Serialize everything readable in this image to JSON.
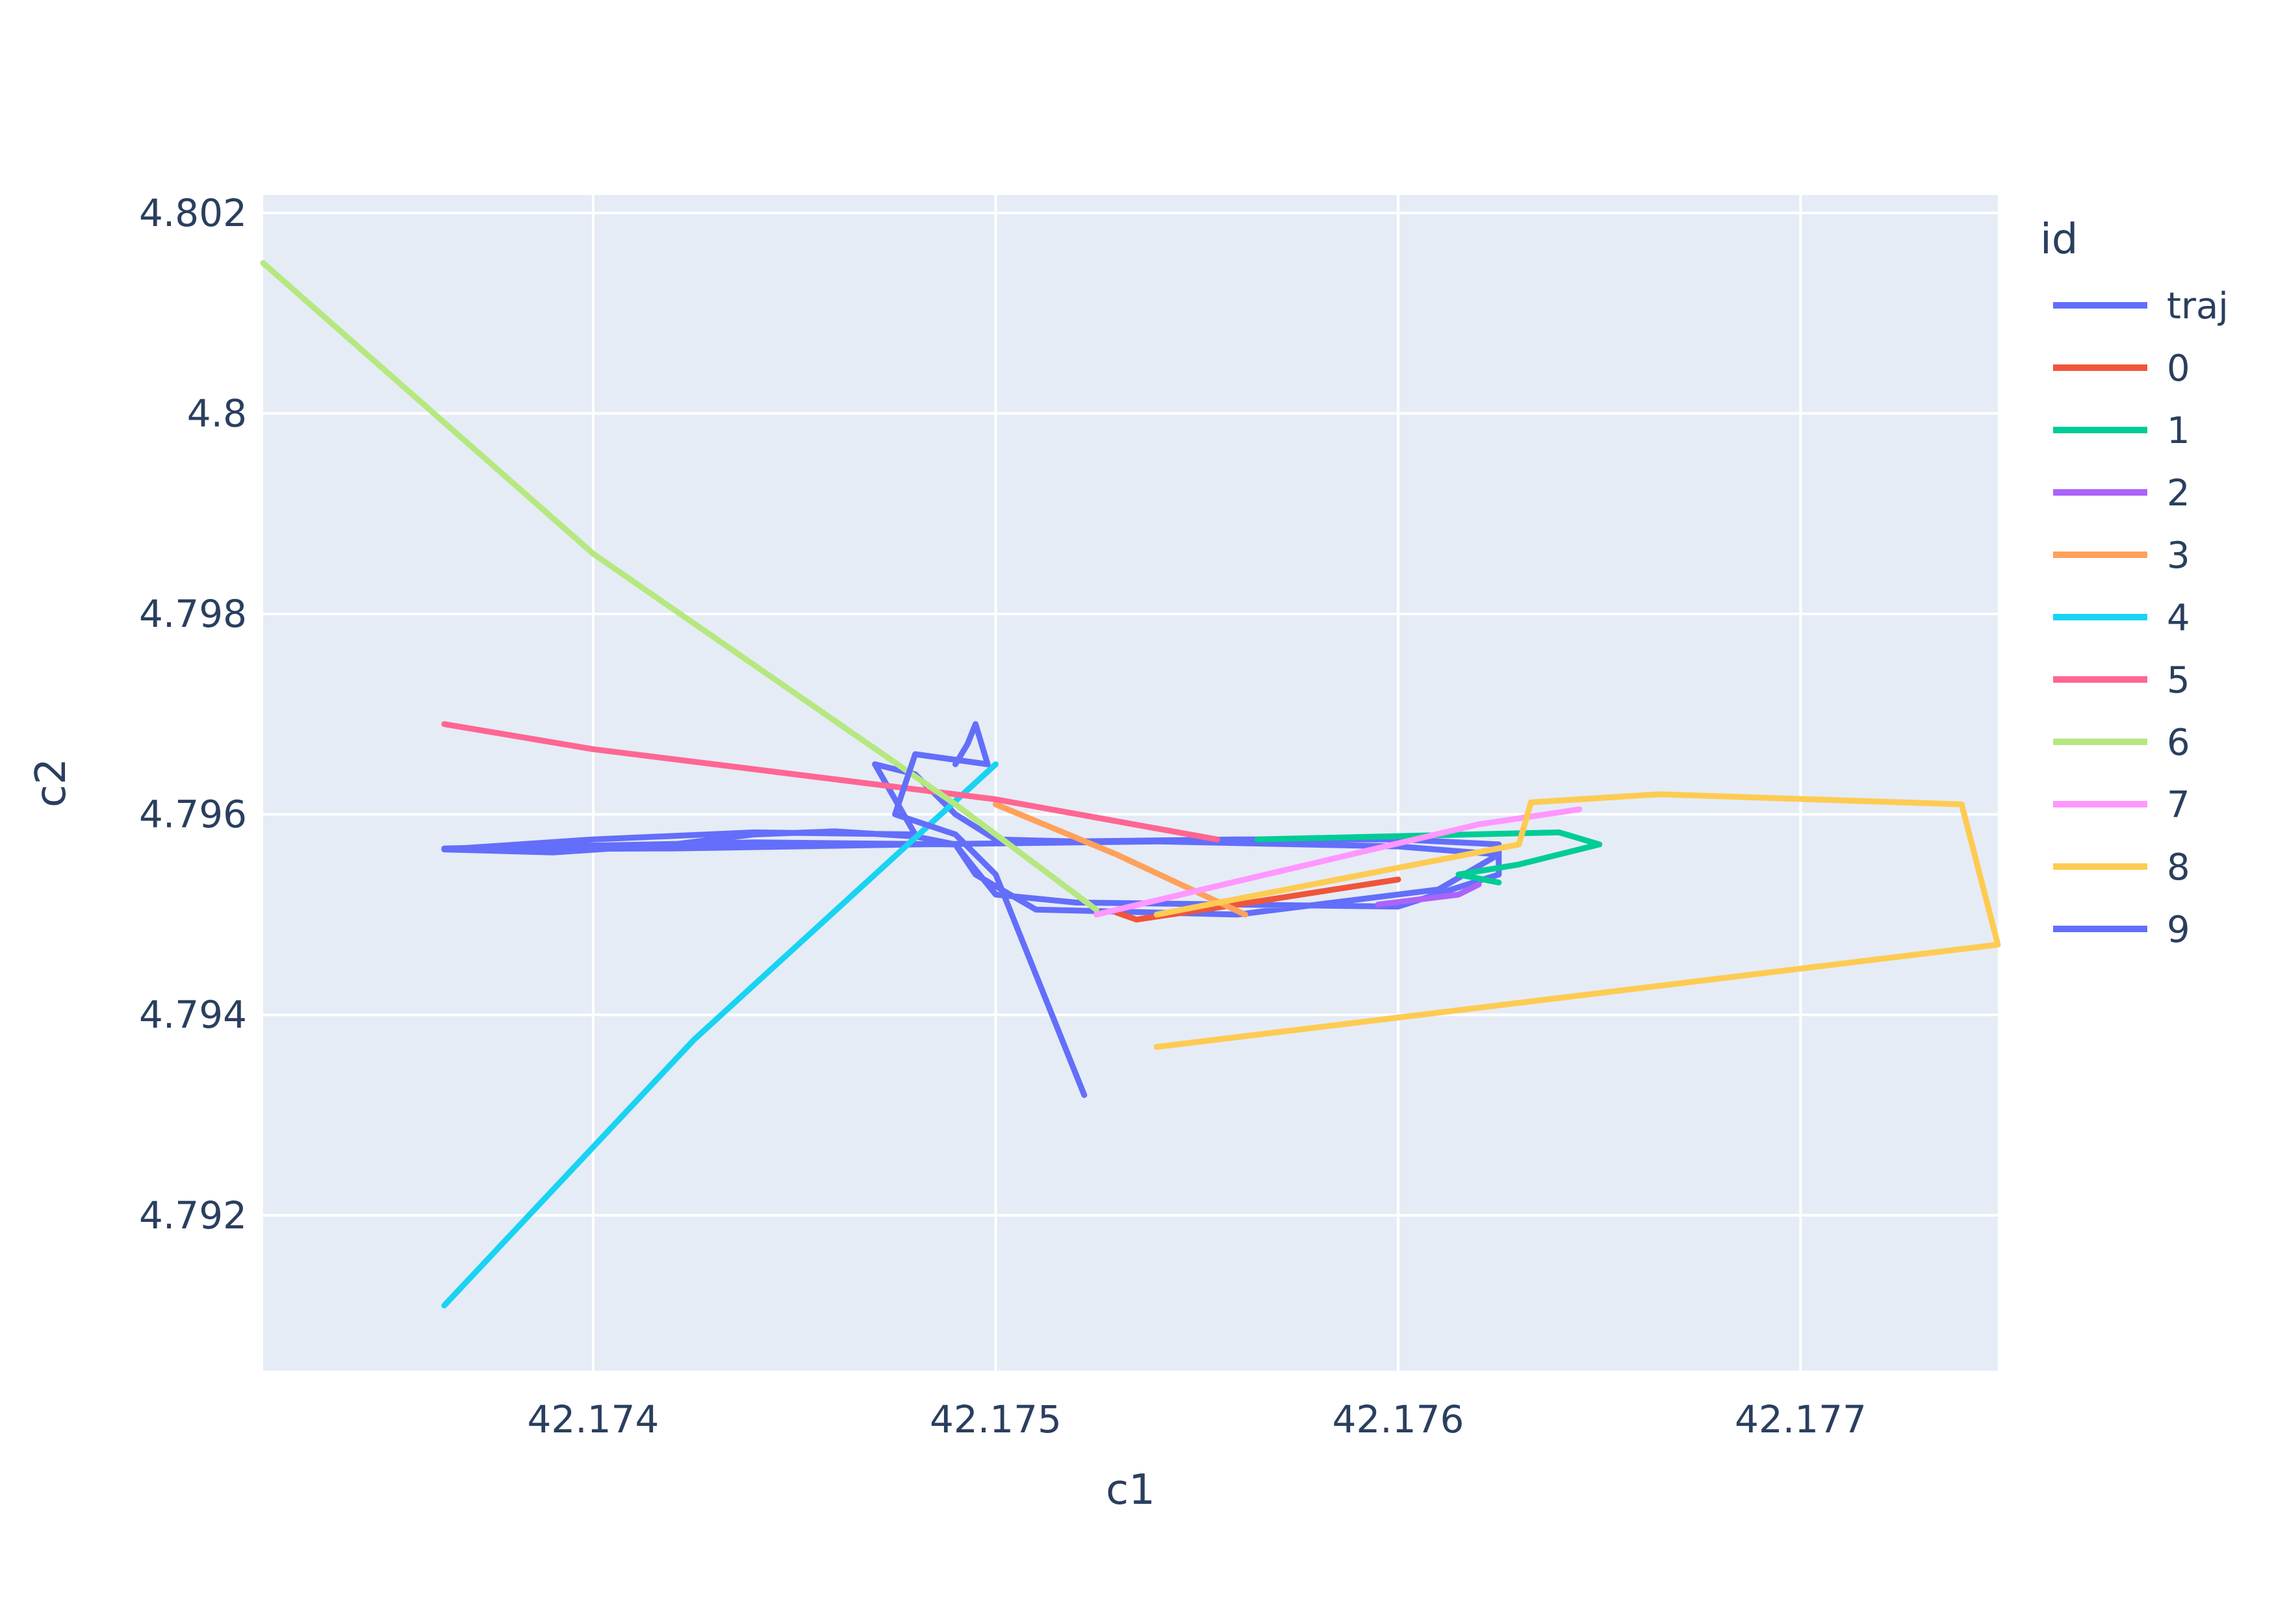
{
  "chart_data": {
    "type": "line",
    "xlabel": "c1",
    "ylabel": "c2",
    "xlim": [
      42.17318,
      42.17749
    ],
    "ylim": [
      4.79045,
      4.80218
    ],
    "xticks": [
      42.174,
      42.175,
      42.176,
      42.177
    ],
    "xtick_labels": [
      "42.174",
      "42.175",
      "42.176",
      "42.177"
    ],
    "yticks": [
      4.792,
      4.794,
      4.796,
      4.798,
      4.8,
      4.802
    ],
    "ytick_labels": [
      "4.792",
      "4.794",
      "4.796",
      "4.798",
      "4.8",
      "4.802"
    ],
    "grid": true,
    "legend": {
      "title": "id",
      "placement": "right"
    },
    "plot_bgcolor": "#e5ecf6",
    "series": [
      {
        "name": "traj",
        "color": "#636efa",
        "x": [
          42.17363,
          42.1739,
          42.1742,
          42.1744,
          42.1746,
          42.1748,
          42.1749,
          42.175,
          42.1752,
          42.1756,
          42.176,
          42.17625,
          42.17625,
          42.176,
          42.1756,
          42.1752,
          42.175,
          42.1749,
          42.1748,
          42.1747,
          42.1748,
          42.1744,
          42.174,
          42.17363,
          42.1742,
          42.1748,
          42.1754,
          42.176,
          42.17625,
          42.1761,
          42.1756,
          42.1751,
          42.17495,
          42.1749,
          42.1744,
          42.17363
        ],
        "y": [
          4.79565,
          4.79562,
          4.7957,
          4.7958,
          4.79583,
          4.79578,
          4.7957,
          4.7952,
          4.79512,
          4.7951,
          4.79508,
          4.7954,
          4.7957,
          4.79575,
          4.79575,
          4.79573,
          4.79575,
          4.796,
          4.7964,
          4.7965,
          4.7958,
          4.79582,
          4.79575,
          4.79565,
          4.79566,
          4.7957,
          4.79573,
          4.79568,
          4.7956,
          4.79525,
          4.795,
          4.79505,
          4.7954,
          4.7957,
          4.79572,
          4.79566
        ]
      },
      {
        "name": "0",
        "color": "#ef553b",
        "x": [
          42.1753,
          42.17535,
          42.1756,
          42.176
        ],
        "y": [
          4.79502,
          4.79495,
          4.7951,
          4.79535
        ]
      },
      {
        "name": "1",
        "color": "#00cc96",
        "x": [
          42.17565,
          42.1764,
          42.1765,
          42.1763,
          42.17615,
          42.17625
        ],
        "y": [
          4.79575,
          4.79582,
          4.7957,
          4.7955,
          4.7954,
          4.79532
        ]
      },
      {
        "name": "2",
        "color": "#ab63fa",
        "x": [
          42.17595,
          42.17615,
          42.1762
        ],
        "y": [
          4.7951,
          4.7952,
          4.7953
        ]
      },
      {
        "name": "3",
        "color": "#ffa15a",
        "x": [
          42.175,
          42.1753,
          42.17562
        ],
        "y": [
          4.7961,
          4.7956,
          4.795
        ]
      },
      {
        "name": "4",
        "color": "#19d3f3",
        "x": [
          42.17363,
          42.17425,
          42.175
        ],
        "y": [
          4.7911,
          4.79375,
          4.7965
        ]
      },
      {
        "name": "5",
        "color": "#ff6692",
        "x": [
          42.17363,
          42.174,
          42.175,
          42.17555
        ],
        "y": [
          4.7969,
          4.79665,
          4.79615,
          4.79575
        ]
      },
      {
        "name": "6",
        "color": "#b6e880",
        "x": [
          42.17318,
          42.174,
          42.1749,
          42.17525
        ],
        "y": [
          4.8015,
          4.7986,
          4.7961,
          4.79505
        ]
      },
      {
        "name": "7",
        "color": "#ff97ff",
        "x": [
          42.17525,
          42.1762,
          42.17645
        ],
        "y": [
          4.795,
          4.7959,
          4.79605
        ]
      },
      {
        "name": "8",
        "color": "#fecb52",
        "x": [
          42.1754,
          42.1763,
          42.17633,
          42.17665,
          42.1774,
          42.17749,
          42.1754
        ],
        "y": [
          4.795,
          4.7957,
          4.79612,
          4.7962,
          4.7961,
          4.7947,
          4.79368
        ]
      },
      {
        "name": "9",
        "color": "#636efa",
        "x": [
          42.1749,
          42.17493,
          42.17495,
          42.17498,
          42.1748,
          42.17475,
          42.1749,
          42.175,
          42.17522
        ],
        "y": [
          4.7965,
          4.7967,
          4.7969,
          4.7965,
          4.7966,
          4.796,
          4.7958,
          4.7954,
          4.7932
        ]
      }
    ]
  }
}
